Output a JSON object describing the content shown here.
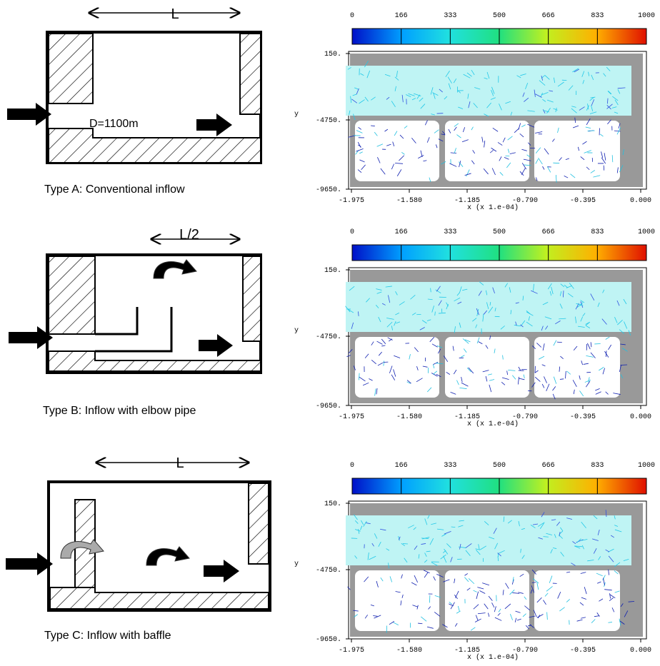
{
  "panels": [
    {
      "dimension": "L",
      "note": "D=1100m",
      "caption": "Type A: Conventional inflow",
      "plot": {
        "colorbar_ticks": [
          0,
          166,
          333,
          500,
          666,
          833,
          1000
        ],
        "y_label": "y",
        "y_ticks": [
          "150.",
          "-4750.",
          "-9650."
        ],
        "x_ticks": [
          "-1.975",
          "-1.580",
          "-1.185",
          "-0.790",
          "-0.395",
          "0.000"
        ],
        "x_label": "x  (x 1.e-04)"
      }
    },
    {
      "dimension": "L/2",
      "caption": "Type B:  Inflow with elbow pipe",
      "plot": {
        "colorbar_ticks": [
          0,
          166,
          333,
          500,
          666,
          833,
          1000
        ],
        "y_label": "y",
        "y_ticks": [
          "150.",
          "-4750.",
          "-9650."
        ],
        "x_ticks": [
          "-1.975",
          "-1.580",
          "-1.185",
          "-0.790",
          "-0.395",
          "0.000"
        ],
        "x_label": "x  (x 1.e-04)"
      }
    },
    {
      "dimension": "L",
      "caption": "Type C: Inflow with baffle",
      "plot": {
        "colorbar_ticks": [
          0,
          166,
          333,
          500,
          666,
          833,
          1000
        ],
        "y_label": "y",
        "y_ticks": [
          "150.",
          "-4750.",
          "-9650."
        ],
        "x_ticks": [
          "-1.975",
          "-1.580",
          "-1.185",
          "-0.790",
          "-0.395",
          "0.000"
        ],
        "x_label": "x  (x 1.e-04)"
      }
    }
  ]
}
